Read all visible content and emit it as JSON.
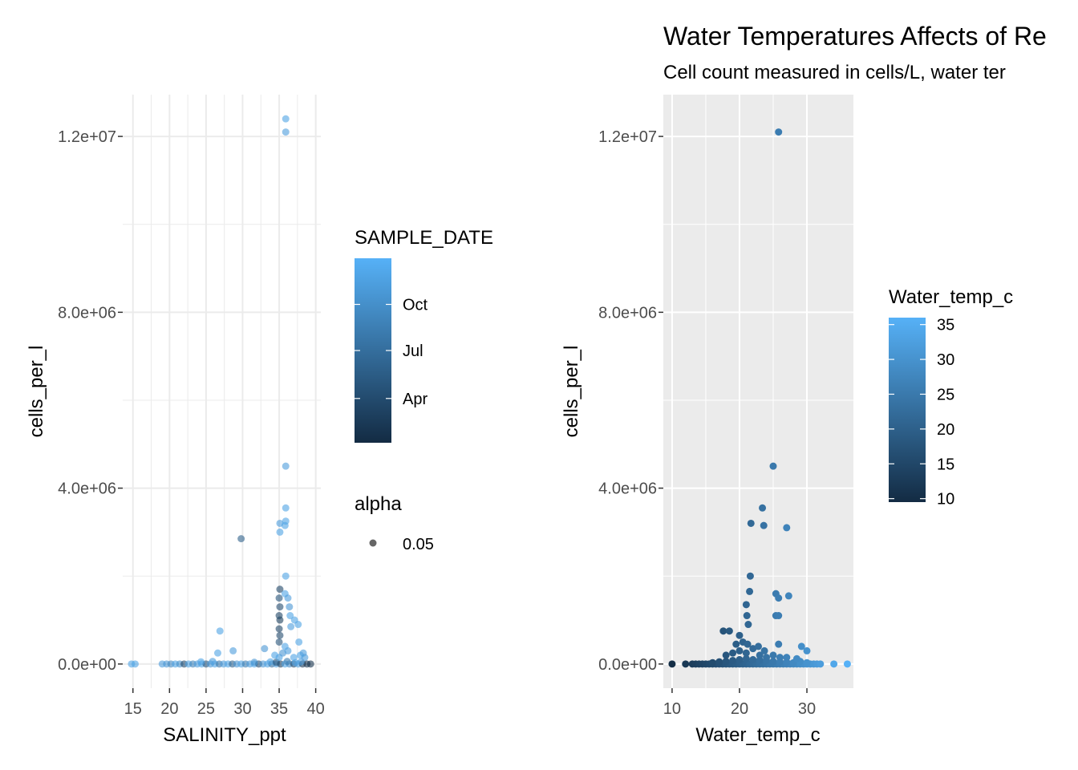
{
  "chart_data": [
    {
      "type": "scatter",
      "title": "",
      "xlabel": "SALINITY_ppt",
      "ylabel": "cells_per_l",
      "xlim": [
        13.6,
        40.7
      ],
      "ylim": [
        -550000,
        12950000
      ],
      "x_ticks": [
        15,
        20,
        25,
        30,
        35,
        40
      ],
      "x_tick_labels": [
        "15",
        "20",
        "25",
        "30",
        "35",
        "40"
      ],
      "y_ticks": [
        0,
        4000000,
        8000000,
        12000000
      ],
      "y_tick_labels": [
        "0.0e+00",
        "4.0e+06",
        "8.0e+06",
        "1.2e+07"
      ],
      "grid": true,
      "background": "#ffffff",
      "gridline_color": "#ebebeb",
      "point_opacity": 0.6,
      "color_by": "SAMPLE_DATE (0 = Jan, 1 = Dec, fraction of year)",
      "points": [
        {
          "x": 14.8,
          "y": 0,
          "c": 0.9
        },
        {
          "x": 15.3,
          "y": 0,
          "c": 0.9
        },
        {
          "x": 19.0,
          "y": 0,
          "c": 0.85
        },
        {
          "x": 19.6,
          "y": 0,
          "c": 0.8
        },
        {
          "x": 20.2,
          "y": 0,
          "c": 0.7
        },
        {
          "x": 20.8,
          "y": 0,
          "c": 0.9
        },
        {
          "x": 21.4,
          "y": 0,
          "c": 0.75
        },
        {
          "x": 22.0,
          "y": 0,
          "c": 0.2
        },
        {
          "x": 22.6,
          "y": 0,
          "c": 0.9
        },
        {
          "x": 23.2,
          "y": 0,
          "c": 0.65
        },
        {
          "x": 23.8,
          "y": 0,
          "c": 0.85
        },
        {
          "x": 24.4,
          "y": 0,
          "c": 0.9
        },
        {
          "x": 25.0,
          "y": 0,
          "c": 0.3
        },
        {
          "x": 25.6,
          "y": 0,
          "c": 0.8
        },
        {
          "x": 26.2,
          "y": 0,
          "c": 0.9
        },
        {
          "x": 26.8,
          "y": 0,
          "c": 0.55
        },
        {
          "x": 27.4,
          "y": 0,
          "c": 0.85
        },
        {
          "x": 28.0,
          "y": 0,
          "c": 0.9
        },
        {
          "x": 28.6,
          "y": 0,
          "c": 0.4
        },
        {
          "x": 29.2,
          "y": 0,
          "c": 0.8
        },
        {
          "x": 29.8,
          "y": 0,
          "c": 0.9
        },
        {
          "x": 30.4,
          "y": 0,
          "c": 0.6
        },
        {
          "x": 31.0,
          "y": 0,
          "c": 0.85
        },
        {
          "x": 31.6,
          "y": 0,
          "c": 0.9
        },
        {
          "x": 32.2,
          "y": 0,
          "c": 0.25
        },
        {
          "x": 32.8,
          "y": 0,
          "c": 0.8
        },
        {
          "x": 33.4,
          "y": 0,
          "c": 0.9
        },
        {
          "x": 34.0,
          "y": 0,
          "c": 0.5
        },
        {
          "x": 34.6,
          "y": 0,
          "c": 0.85
        },
        {
          "x": 35.2,
          "y": 0,
          "c": 0.15
        },
        {
          "x": 35.8,
          "y": 0,
          "c": 0.9
        },
        {
          "x": 36.4,
          "y": 0,
          "c": 0.7
        },
        {
          "x": 37.0,
          "y": 0,
          "c": 0.2
        },
        {
          "x": 37.6,
          "y": 0,
          "c": 0.85
        },
        {
          "x": 38.2,
          "y": 0,
          "c": 0.1
        },
        {
          "x": 38.8,
          "y": 0,
          "c": 0.05
        },
        {
          "x": 39.3,
          "y": 0,
          "c": 0.05
        },
        {
          "x": 24.3,
          "y": 50000,
          "c": 0.9
        },
        {
          "x": 25.9,
          "y": 60000,
          "c": 0.85
        },
        {
          "x": 31.6,
          "y": 40000,
          "c": 0.8
        },
        {
          "x": 33.8,
          "y": 50000,
          "c": 0.9
        },
        {
          "x": 34.6,
          "y": 40000,
          "c": 0.3
        },
        {
          "x": 36.1,
          "y": 60000,
          "c": 0.6
        },
        {
          "x": 37.2,
          "y": 30000,
          "c": 0.9
        },
        {
          "x": 38.0,
          "y": 50000,
          "c": 0.85
        },
        {
          "x": 26.6,
          "y": 250000,
          "c": 0.9
        },
        {
          "x": 28.7,
          "y": 300000,
          "c": 0.85
        },
        {
          "x": 33.0,
          "y": 350000,
          "c": 0.8
        },
        {
          "x": 34.4,
          "y": 200000,
          "c": 0.9
        },
        {
          "x": 35.0,
          "y": 150000,
          "c": 0.9
        },
        {
          "x": 35.5,
          "y": 250000,
          "c": 0.8
        },
        {
          "x": 36.2,
          "y": 300000,
          "c": 0.85
        },
        {
          "x": 37.0,
          "y": 150000,
          "c": 0.9
        },
        {
          "x": 37.9,
          "y": 200000,
          "c": 0.9
        },
        {
          "x": 38.5,
          "y": 150000,
          "c": 0.85
        },
        {
          "x": 26.9,
          "y": 750000,
          "c": 0.9
        },
        {
          "x": 29.8,
          "y": 2850000,
          "c": 0.4
        },
        {
          "x": 35.0,
          "y": 500000,
          "c": 0.3
        },
        {
          "x": 35.1,
          "y": 650000,
          "c": 0.25
        },
        {
          "x": 35.0,
          "y": 800000,
          "c": 0.2
        },
        {
          "x": 35.1,
          "y": 1000000,
          "c": 0.15
        },
        {
          "x": 35.0,
          "y": 1100000,
          "c": 0.2
        },
        {
          "x": 35.1,
          "y": 1300000,
          "c": 0.25
        },
        {
          "x": 35.0,
          "y": 1500000,
          "c": 0.3
        },
        {
          "x": 35.1,
          "y": 1700000,
          "c": 0.2
        },
        {
          "x": 35.8,
          "y": 400000,
          "c": 0.9
        },
        {
          "x": 35.8,
          "y": 1600000,
          "c": 0.9
        },
        {
          "x": 35.9,
          "y": 2000000,
          "c": 0.9
        },
        {
          "x": 36.2,
          "y": 1500000,
          "c": 0.85
        },
        {
          "x": 36.4,
          "y": 1300000,
          "c": 0.8
        },
        {
          "x": 36.5,
          "y": 1100000,
          "c": 0.9
        },
        {
          "x": 36.6,
          "y": 850000,
          "c": 0.85
        },
        {
          "x": 37.1,
          "y": 1000000,
          "c": 0.9
        },
        {
          "x": 37.6,
          "y": 900000,
          "c": 0.9
        },
        {
          "x": 37.7,
          "y": 500000,
          "c": 0.9
        },
        {
          "x": 38.3,
          "y": 250000,
          "c": 0.85
        },
        {
          "x": 35.1,
          "y": 3000000,
          "c": 0.9
        },
        {
          "x": 35.1,
          "y": 3200000,
          "c": 0.85
        },
        {
          "x": 35.8,
          "y": 3150000,
          "c": 0.9
        },
        {
          "x": 35.9,
          "y": 3250000,
          "c": 0.9
        },
        {
          "x": 35.9,
          "y": 3550000,
          "c": 0.9
        },
        {
          "x": 35.9,
          "y": 4500000,
          "c": 0.85
        },
        {
          "x": 35.9,
          "y": 12100000,
          "c": 0.85
        },
        {
          "x": 35.9,
          "y": 12400000,
          "c": 0.9
        }
      ]
    },
    {
      "type": "scatter",
      "title": "Water Temperatures Affects of Re",
      "subtitle": "Cell count measured in cells/L, water ter",
      "xlabel": "Water_temp_c",
      "ylabel": "cells_per_l",
      "xlim": [
        8.7,
        36.9
      ],
      "ylim": [
        -550000,
        12950000
      ],
      "x_ticks": [
        10,
        20,
        30
      ],
      "x_tick_labels": [
        "10",
        "20",
        "30"
      ],
      "y_ticks": [
        0,
        4000000,
        8000000,
        12000000
      ],
      "y_tick_labels": [
        "0.0e+00",
        "4.0e+06",
        "8.0e+06",
        "1.2e+07"
      ],
      "grid": true,
      "background": "#ebebeb",
      "gridline_color": "#ffffff",
      "color_by": "Water_temp_c",
      "points": [
        {
          "x": 10,
          "y": 0
        },
        {
          "x": 12,
          "y": 0
        },
        {
          "x": 13,
          "y": 0
        },
        {
          "x": 13.5,
          "y": 0
        },
        {
          "x": 14,
          "y": 0
        },
        {
          "x": 14.5,
          "y": 0
        },
        {
          "x": 15,
          "y": 0
        },
        {
          "x": 15.5,
          "y": 0
        },
        {
          "x": 16,
          "y": 0
        },
        {
          "x": 16.5,
          "y": 0
        },
        {
          "x": 17,
          "y": 0
        },
        {
          "x": 17.5,
          "y": 0
        },
        {
          "x": 18,
          "y": 0
        },
        {
          "x": 18.5,
          "y": 0
        },
        {
          "x": 19,
          "y": 0
        },
        {
          "x": 19.5,
          "y": 0
        },
        {
          "x": 20,
          "y": 0
        },
        {
          "x": 20.5,
          "y": 0
        },
        {
          "x": 21,
          "y": 0
        },
        {
          "x": 21.5,
          "y": 0
        },
        {
          "x": 22,
          "y": 0
        },
        {
          "x": 22.5,
          "y": 0
        },
        {
          "x": 23,
          "y": 0
        },
        {
          "x": 23.5,
          "y": 0
        },
        {
          "x": 24,
          "y": 0
        },
        {
          "x": 24.5,
          "y": 0
        },
        {
          "x": 25,
          "y": 0
        },
        {
          "x": 25.5,
          "y": 0
        },
        {
          "x": 26,
          "y": 0
        },
        {
          "x": 26.5,
          "y": 0
        },
        {
          "x": 27,
          "y": 0
        },
        {
          "x": 27.5,
          "y": 0
        },
        {
          "x": 28,
          "y": 0
        },
        {
          "x": 28.5,
          "y": 0
        },
        {
          "x": 29,
          "y": 0
        },
        {
          "x": 29.5,
          "y": 0
        },
        {
          "x": 30,
          "y": 0
        },
        {
          "x": 30.5,
          "y": 0
        },
        {
          "x": 31,
          "y": 0
        },
        {
          "x": 31.5,
          "y": 0
        },
        {
          "x": 32,
          "y": 0
        },
        {
          "x": 34,
          "y": 0
        },
        {
          "x": 36,
          "y": 0
        },
        {
          "x": 16,
          "y": 30000
        },
        {
          "x": 17,
          "y": 50000
        },
        {
          "x": 18,
          "y": 60000
        },
        {
          "x": 19,
          "y": 80000
        },
        {
          "x": 20,
          "y": 100000
        },
        {
          "x": 21,
          "y": 120000
        },
        {
          "x": 22,
          "y": 100000
        },
        {
          "x": 23,
          "y": 90000
        },
        {
          "x": 24,
          "y": 80000
        },
        {
          "x": 25,
          "y": 60000
        },
        {
          "x": 26,
          "y": 50000
        },
        {
          "x": 27,
          "y": 40000
        },
        {
          "x": 28,
          "y": 30000
        },
        {
          "x": 29,
          "y": 60000
        },
        {
          "x": 30,
          "y": 30000
        },
        {
          "x": 18,
          "y": 200000
        },
        {
          "x": 19,
          "y": 250000
        },
        {
          "x": 20,
          "y": 300000
        },
        {
          "x": 21,
          "y": 250000
        },
        {
          "x": 22,
          "y": 350000
        },
        {
          "x": 23,
          "y": 200000
        },
        {
          "x": 24,
          "y": 150000
        },
        {
          "x": 25,
          "y": 200000
        },
        {
          "x": 26,
          "y": 150000
        },
        {
          "x": 27,
          "y": 150000
        },
        {
          "x": 28.5,
          "y": 120000
        },
        {
          "x": 19.5,
          "y": 450000
        },
        {
          "x": 20.5,
          "y": 500000
        },
        {
          "x": 21.2,
          "y": 450000
        },
        {
          "x": 22.8,
          "y": 400000
        },
        {
          "x": 23.7,
          "y": 300000
        },
        {
          "x": 25.8,
          "y": 450000
        },
        {
          "x": 29.2,
          "y": 400000
        },
        {
          "x": 30.0,
          "y": 300000
        },
        {
          "x": 17.6,
          "y": 750000
        },
        {
          "x": 18.5,
          "y": 750000
        },
        {
          "x": 20.0,
          "y": 650000
        },
        {
          "x": 21.3,
          "y": 900000
        },
        {
          "x": 21.1,
          "y": 1100000
        },
        {
          "x": 21.0,
          "y": 1350000
        },
        {
          "x": 21.5,
          "y": 1650000
        },
        {
          "x": 21.6,
          "y": 2000000
        },
        {
          "x": 25.4,
          "y": 1100000
        },
        {
          "x": 25.8,
          "y": 1100000
        },
        {
          "x": 25.4,
          "y": 1600000
        },
        {
          "x": 25.8,
          "y": 1500000
        },
        {
          "x": 27.3,
          "y": 1550000
        },
        {
          "x": 21.7,
          "y": 3200000
        },
        {
          "x": 23.6,
          "y": 3150000
        },
        {
          "x": 23.4,
          "y": 3550000
        },
        {
          "x": 27.0,
          "y": 3100000
        },
        {
          "x": 25.0,
          "y": 4500000
        },
        {
          "x": 25.8,
          "y": 12100000
        }
      ]
    }
  ],
  "legends": {
    "sample_date": {
      "title": "SAMPLE_DATE",
      "labels": [
        {
          "text": "Oct",
          "pos": 0.75
        },
        {
          "text": "Jul",
          "pos": 0.5
        },
        {
          "text": "Apr",
          "pos": 0.24
        }
      ],
      "low_color": "#132b43",
      "high_color": "#56b1f7"
    },
    "alpha": {
      "title": "alpha",
      "label": "0.05"
    },
    "water_temp": {
      "title": "Water_temp_c",
      "min": 9.5,
      "max": 36,
      "labels": [
        {
          "text": "35",
          "value": 35
        },
        {
          "text": "30",
          "value": 30
        },
        {
          "text": "25",
          "value": 25
        },
        {
          "text": "20",
          "value": 20
        },
        {
          "text": "15",
          "value": 15
        },
        {
          "text": "10",
          "value": 10
        }
      ],
      "low_color": "#132b43",
      "high_color": "#56b1f7"
    }
  }
}
